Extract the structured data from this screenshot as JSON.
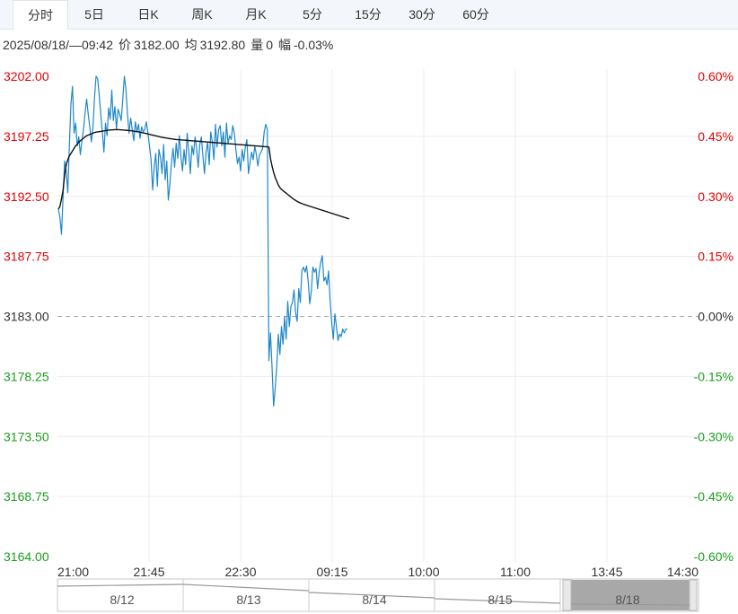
{
  "tabs": [
    {
      "label": "分时",
      "active": true
    },
    {
      "label": "5日",
      "active": false
    },
    {
      "label": "日K",
      "active": false
    },
    {
      "label": "周K",
      "active": false
    },
    {
      "label": "月K",
      "active": false
    },
    {
      "label": "5分",
      "active": false
    },
    {
      "label": "15分",
      "active": false
    },
    {
      "label": "30分",
      "active": false
    },
    {
      "label": "60分",
      "active": false
    }
  ],
  "info": {
    "datetime": "2025/08/18/—09:42",
    "price_label": "价",
    "price": "3182.00",
    "avg_label": "均",
    "avg": "3192.80",
    "volume_label": "量",
    "volume": "0",
    "change_label": "幅",
    "change": "-0.03%"
  },
  "colors": {
    "up": "#e60000",
    "down": "#1a9e1a",
    "flat": "#333333",
    "price_line": "#1f88c8",
    "avg_line": "#111111"
  },
  "chart_data": {
    "type": "line",
    "y_ticks": [
      "3202.00",
      "3197.25",
      "3192.50",
      "3187.75",
      "3183.00",
      "3178.25",
      "3173.50",
      "3168.75",
      "3164.00"
    ],
    "pct_ticks": [
      "0.60%",
      "0.45%",
      "0.30%",
      "0.15%",
      "0.00%",
      "-0.15%",
      "-0.30%",
      "-0.45%",
      "-0.60%"
    ],
    "x_ticks": [
      "21:00",
      "21:45",
      "22:30",
      "09:15",
      "10:00",
      "11:00",
      "13:45",
      "14:30"
    ],
    "ylim": [
      3164.0,
      3202.0
    ],
    "reference_price": 3183.0,
    "grid": true,
    "series": [
      {
        "role": "price",
        "values": [
          3191.5,
          3190.8,
          3189.5,
          3192.5,
          3195.3,
          3194.5,
          3192.8,
          3196.5,
          3199.8,
          3201.2,
          3197.5,
          3198.3,
          3196.5,
          3197.2,
          3195.8,
          3196.9,
          3197.8,
          3199.1,
          3200.2,
          3199.0,
          3198.0,
          3196.8,
          3197.9,
          3200.3,
          3202.0,
          3201.8,
          3200.5,
          3199.0,
          3197.6,
          3196.0,
          3198.3,
          3197.3,
          3199.5,
          3198.6,
          3200.9,
          3198.5,
          3199.6,
          3197.8,
          3199.4,
          3199.0,
          3198.5,
          3200.2,
          3202.0,
          3201.0,
          3199.0,
          3197.5,
          3198.7,
          3197.8,
          3196.9,
          3198.4,
          3197.6,
          3198.2,
          3197.1,
          3198.0,
          3197.6,
          3197.8,
          3198.4,
          3197.5,
          3196.5,
          3195.4,
          3193.0,
          3194.8,
          3195.9,
          3193.3,
          3196.2,
          3195.6,
          3194.3,
          3196.6,
          3193.8,
          3195.3,
          3192.2,
          3193.5,
          3195.2,
          3196.3,
          3194.8,
          3196.7,
          3195.5,
          3197.3,
          3195.7,
          3194.5,
          3196.2,
          3195.0,
          3197.5,
          3196.0,
          3194.3,
          3196.5,
          3195.8,
          3197.2,
          3196.3,
          3194.8,
          3196.6,
          3197.2,
          3195.7,
          3194.3,
          3196.0,
          3196.8,
          3195.0,
          3197.6,
          3196.8,
          3195.4,
          3198.2,
          3196.4,
          3197.8,
          3198.1,
          3196.5,
          3197.6,
          3195.6,
          3198.3,
          3196.7,
          3197.3,
          3197.0,
          3198.1,
          3197.5,
          3196.2,
          3195.1,
          3195.6,
          3194.5,
          3196.2,
          3195.3,
          3196.4,
          3197.0,
          3194.3,
          3195.2,
          3196.0,
          3195.4,
          3196.5,
          3195.8,
          3194.9,
          3195.8,
          3196.0,
          3196.3,
          3197.6,
          3198.2,
          3197.8,
          3179.5,
          3181.7,
          3179.0,
          3175.9,
          3177.3,
          3179.0,
          3181.6,
          3180.0,
          3182.2,
          3180.8,
          3183.0,
          3181.2,
          3184.2,
          3182.2,
          3183.8,
          3184.1,
          3185.1,
          3183.3,
          3182.6,
          3185.2,
          3184.1,
          3186.6,
          3186.9,
          3186.5,
          3187.0,
          3185.8,
          3184.0,
          3185.0,
          3186.9,
          3186.5,
          3186.8,
          3185.2,
          3186.5,
          3187.3,
          3187.8,
          3185.8,
          3186.1,
          3185.5,
          3186.6,
          3184.2,
          3182.5,
          3181.2,
          3183.2,
          3182.2,
          3181.1,
          3181.6,
          3181.4,
          3182.0,
          3181.7,
          3182.0,
          3182.0
        ]
      },
      {
        "role": "average",
        "values": [
          3191.5,
          3191.7,
          3192.3,
          3193.0,
          3194.2,
          3195.0,
          3195.4,
          3195.7,
          3195.9,
          3196.1,
          3196.3,
          3196.5,
          3196.6,
          3196.8,
          3196.9,
          3197.0,
          3197.1,
          3197.2,
          3197.3,
          3197.35,
          3197.4,
          3197.45,
          3197.5,
          3197.55,
          3197.58,
          3197.6,
          3197.62,
          3197.64,
          3197.66,
          3197.68,
          3197.7,
          3197.72,
          3197.74,
          3197.75,
          3197.76,
          3197.77,
          3197.78,
          3197.78,
          3197.78,
          3197.77,
          3197.76,
          3197.75,
          3197.74,
          3197.73,
          3197.72,
          3197.71,
          3197.7,
          3197.68,
          3197.66,
          3197.64,
          3197.62,
          3197.6,
          3197.58,
          3197.55,
          3197.52,
          3197.5,
          3197.47,
          3197.44,
          3197.41,
          3197.38,
          3197.35,
          3197.32,
          3197.29,
          3197.26,
          3197.23,
          3197.2,
          3197.17,
          3197.15,
          3197.13,
          3197.11,
          3197.09,
          3197.07,
          3197.05,
          3197.03,
          3197.01,
          3197.0,
          3196.99,
          3196.98,
          3196.97,
          3196.96,
          3196.95,
          3196.94,
          3196.93,
          3196.92,
          3196.91,
          3196.9,
          3196.89,
          3196.88,
          3196.87,
          3196.86,
          3196.85,
          3196.84,
          3196.83,
          3196.82,
          3196.81,
          3196.8,
          3196.79,
          3196.78,
          3196.77,
          3196.76,
          3196.75,
          3196.74,
          3196.73,
          3196.72,
          3196.71,
          3196.7,
          3196.69,
          3196.68,
          3196.67,
          3196.66,
          3196.65,
          3196.64,
          3196.63,
          3196.62,
          3196.61,
          3196.6,
          3196.59,
          3196.58,
          3196.57,
          3196.56,
          3196.55,
          3196.54,
          3196.53,
          3196.52,
          3196.51,
          3196.5,
          3196.49,
          3196.48,
          3196.47,
          3196.46,
          3196.45,
          3196.44,
          3196.43,
          3196.42,
          3196.4,
          3195.5,
          3194.9,
          3194.4,
          3194.0,
          3193.7,
          3193.4,
          3193.2,
          3193.05,
          3192.95,
          3192.85,
          3192.75,
          3192.65,
          3192.55,
          3192.45,
          3192.35,
          3192.26,
          3192.18,
          3192.1,
          3192.04,
          3191.98,
          3191.93,
          3191.88,
          3191.84,
          3191.8,
          3191.76,
          3191.72,
          3191.68,
          3191.64,
          3191.6,
          3191.56,
          3191.52,
          3191.48,
          3191.44,
          3191.4,
          3191.36,
          3191.32,
          3191.28,
          3191.24,
          3191.2,
          3191.16,
          3191.12,
          3191.08,
          3191.04,
          3191.0,
          3190.96,
          3190.92,
          3190.88,
          3190.84,
          3190.8,
          3190.76,
          3190.72
        ]
      }
    ]
  },
  "navigator": {
    "dates": [
      "8/12",
      "8/13",
      "8/14",
      "8/15",
      "8/18"
    ]
  }
}
